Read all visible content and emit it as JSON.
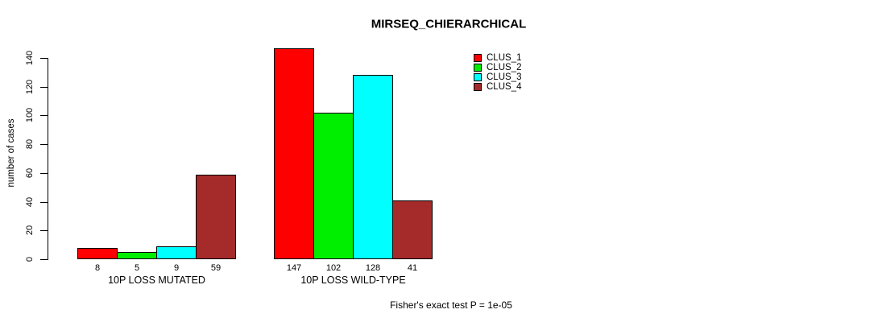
{
  "chart_data": {
    "type": "bar",
    "title": "MIRSEQ_CHIERARCHICAL",
    "ylabel": "number of cases",
    "xlabel": "",
    "categories": [
      "10P LOSS MUTATED",
      "10P LOSS WILD-TYPE"
    ],
    "series": [
      {
        "name": "CLUS_1",
        "color": "#FF0000",
        "values": [
          8,
          147
        ]
      },
      {
        "name": "CLUS_2",
        "color": "#00EE00",
        "values": [
          5,
          102
        ]
      },
      {
        "name": "CLUS_3",
        "color": "#00FFFF",
        "values": [
          9,
          128
        ]
      },
      {
        "name": "CLUS_4",
        "color": "#A52A2A",
        "values": [
          59,
          41
        ]
      }
    ],
    "bar_value_labels": [
      [
        8,
        5,
        9,
        59
      ],
      [
        147,
        102,
        128,
        41
      ]
    ],
    "yticks": [
      0,
      20,
      40,
      60,
      80,
      100,
      120,
      140
    ],
    "ylim": [
      0,
      140
    ],
    "grid": false,
    "legend_position": "top-right",
    "legend_entries": [
      "CLUS_1",
      "CLUS_2",
      "CLUS_3",
      "CLUS_4"
    ],
    "annotation": "Fisher's exact test P = 1e-05",
    "colors": {
      "clus_1": "#FF0000",
      "clus_2": "#00EE00",
      "clus_3": "#00FFFF",
      "clus_4": "#A52A2A",
      "axis": "#000000",
      "background": "#FFFFFF"
    }
  }
}
